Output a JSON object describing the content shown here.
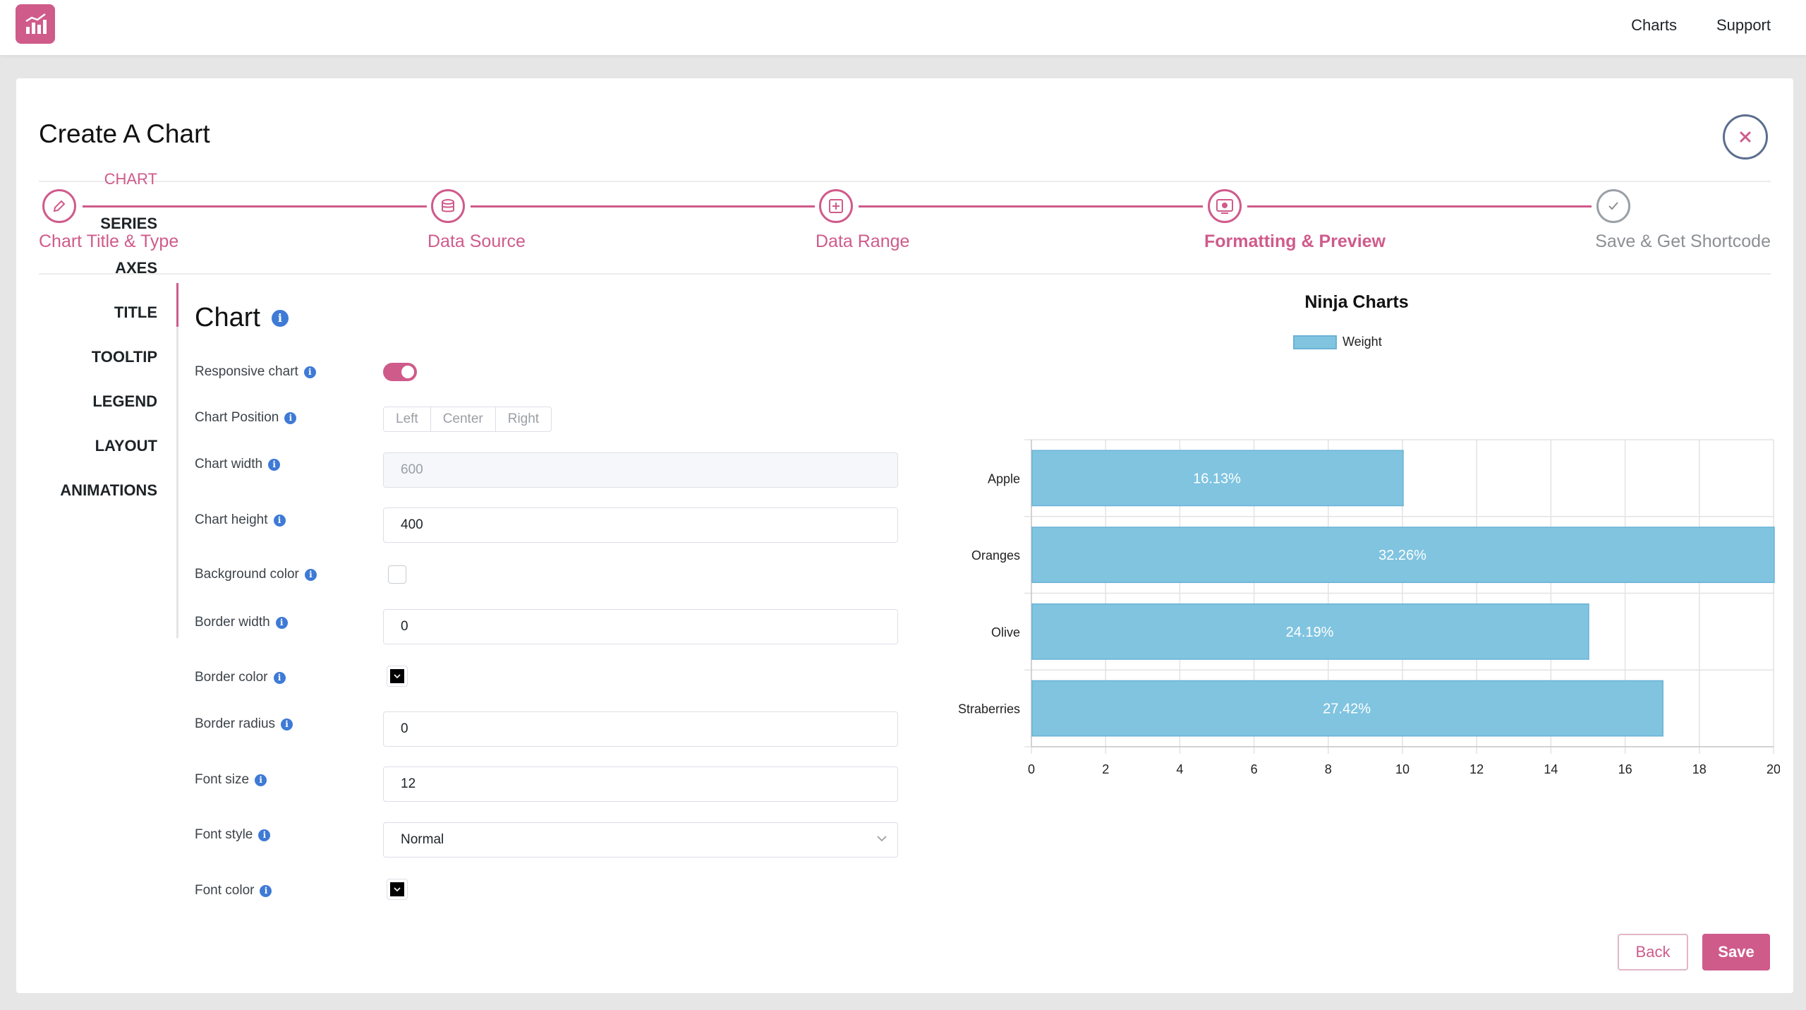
{
  "topnav": {
    "charts": "Charts",
    "support": "Support"
  },
  "page": {
    "title": "Create A Chart"
  },
  "steps": [
    {
      "label": "Chart Title & Type",
      "icon": "pencil-icon",
      "status": "done"
    },
    {
      "label": "Data Source",
      "icon": "database-icon",
      "status": "done"
    },
    {
      "label": "Data Range",
      "icon": "table-icon",
      "status": "done"
    },
    {
      "label": "Formatting & Preview",
      "icon": "eye-icon",
      "status": "active"
    },
    {
      "label": "Save & Get Shortcode",
      "icon": "check-icon",
      "status": "pending"
    }
  ],
  "sidemenu": [
    "Chart",
    "Series",
    "Axes",
    "Title",
    "Tooltip",
    "Legend",
    "Layout",
    "Animations"
  ],
  "section": {
    "title": "Chart"
  },
  "form": {
    "responsive": {
      "label": "Responsive chart",
      "on": true
    },
    "position": {
      "label": "Chart Position",
      "options": [
        "Left",
        "Center",
        "Right"
      ]
    },
    "width": {
      "label": "Chart width",
      "placeholder": "600"
    },
    "height": {
      "label": "Chart height",
      "value": "400"
    },
    "bg_color": {
      "label": "Background color"
    },
    "border_width": {
      "label": "Border width",
      "value": "0"
    },
    "border_color": {
      "label": "Border color",
      "color": "#000000"
    },
    "border_radius": {
      "label": "Border radius",
      "value": "0"
    },
    "font_size": {
      "label": "Font size",
      "value": "12"
    },
    "font_style": {
      "label": "Font style",
      "value": "Normal"
    },
    "font_color": {
      "label": "Font color",
      "color": "#000000"
    }
  },
  "chart_data": {
    "type": "bar",
    "orientation": "horizontal",
    "title": "Ninja Charts",
    "categories": [
      "Apple",
      "Oranges",
      "Olive",
      "Straberries"
    ],
    "series": [
      {
        "name": "Weight",
        "values": [
          10,
          20,
          15,
          17
        ],
        "color": "#80c4e0"
      }
    ],
    "data_labels": [
      "16.13%",
      "32.26%",
      "24.19%",
      "27.42%"
    ],
    "xlim": [
      0,
      20
    ],
    "xticks": [
      "0",
      "2",
      "4",
      "6",
      "8",
      "10",
      "12",
      "14",
      "16",
      "18",
      "20"
    ],
    "grid": true,
    "legend_position": "top"
  },
  "buttons": {
    "back": "Back",
    "save": "Save"
  },
  "colors": {
    "accent": "#cf5b8b",
    "bar": "#80c4e0",
    "info": "#3e7ad6"
  }
}
